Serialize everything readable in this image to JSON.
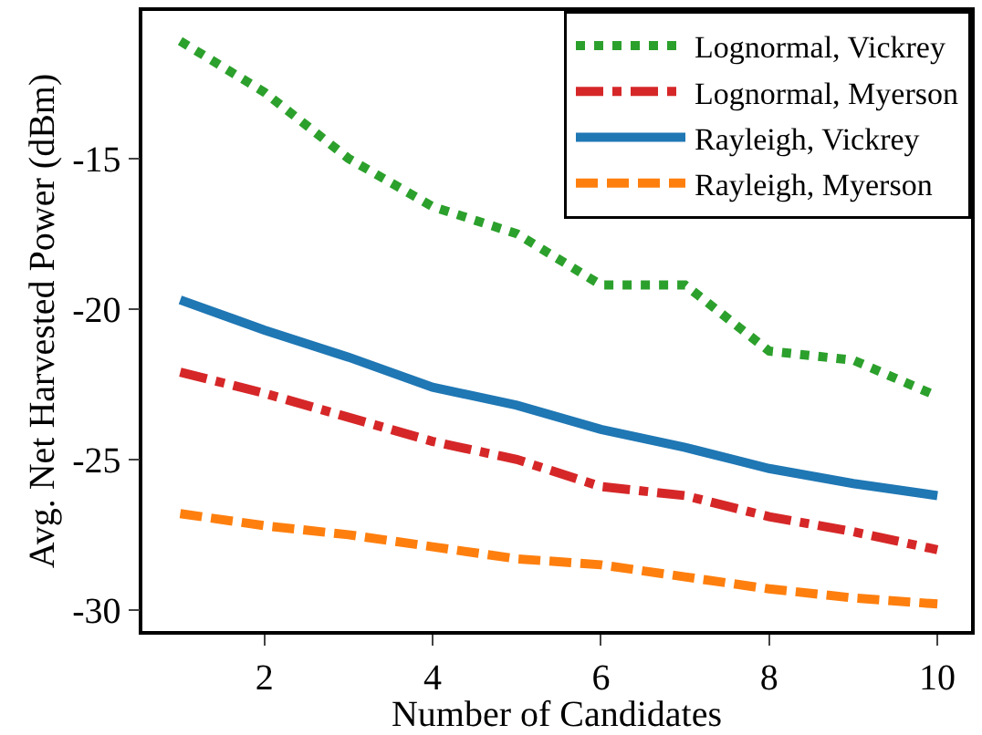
{
  "chart_data": {
    "type": "line",
    "xlabel": "Number of Candidates",
    "ylabel": "Avg. Net Harvested Power (dBm)",
    "x": [
      1,
      2,
      3,
      4,
      5,
      6,
      7,
      8,
      9,
      10
    ],
    "series": [
      {
        "name": "Lognormal, Vickrey",
        "color": "#2ca02c",
        "line_style": "dotted",
        "values": [
          -11.1,
          -12.8,
          -15.0,
          -16.6,
          -17.5,
          -19.2,
          -19.2,
          -21.4,
          -21.7,
          -22.9
        ]
      },
      {
        "name": "Lognormal, Myerson",
        "color": "#d62728",
        "line_style": "dashdot",
        "values": [
          -22.1,
          -22.8,
          -23.6,
          -24.4,
          -25.0,
          -25.9,
          -26.2,
          -26.9,
          -27.4,
          -28.0
        ]
      },
      {
        "name": "Rayleigh, Vickrey",
        "color": "#1f77b4",
        "line_style": "solid",
        "values": [
          -19.7,
          -20.7,
          -21.6,
          -22.6,
          -23.2,
          -24.0,
          -24.6,
          -25.3,
          -25.8,
          -26.2
        ]
      },
      {
        "name": "Rayleigh, Myerson",
        "color": "#ff7f0e",
        "line_style": "dashed",
        "values": [
          -26.8,
          -27.2,
          -27.5,
          -27.9,
          -28.3,
          -28.5,
          -28.9,
          -29.3,
          -29.6,
          -29.8
        ]
      }
    ],
    "xlim": [
      0.55,
      10.4
    ],
    "ylim": [
      -30.7,
      -10.1
    ],
    "xticks": [
      2,
      4,
      6,
      8,
      10
    ],
    "yticks": [
      -15,
      -20,
      -25,
      -30
    ],
    "legend": "top right",
    "marker": "none"
  }
}
